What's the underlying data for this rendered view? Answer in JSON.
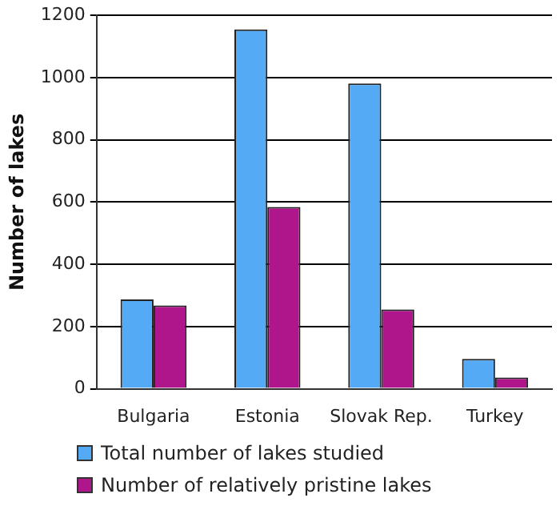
{
  "chart_data": {
    "type": "bar",
    "ylabel": "Number of lakes",
    "categories": [
      "Bulgaria",
      "Estonia",
      "Slovak Rep.",
      "Turkey"
    ],
    "series": [
      {
        "name": "Total number of lakes studied",
        "color": "#55aaf5",
        "values": [
          287,
          1155,
          981,
          96
        ]
      },
      {
        "name": "Number of relatively pristine lakes",
        "color": "#b0168c",
        "values": [
          268,
          584,
          255,
          36
        ]
      }
    ],
    "ylim": [
      0,
      1200
    ],
    "yticks": [
      0,
      200,
      400,
      600,
      800,
      1000,
      1200
    ],
    "grid": "y",
    "legend": "bottom"
  }
}
